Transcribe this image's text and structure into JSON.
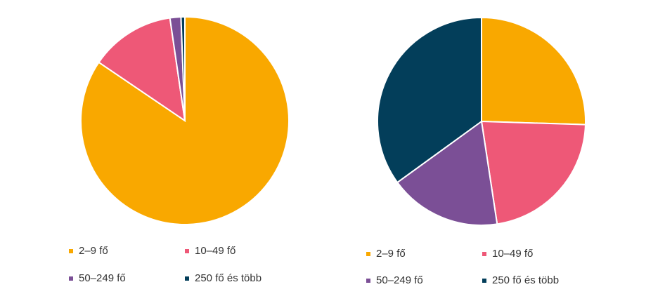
{
  "chart_data": [
    {
      "type": "pie",
      "categories": [
        "2–9 fő",
        "10–49 fő",
        "50–249 fő",
        "250 fő és több"
      ],
      "values": [
        84.5,
        13.2,
        1.7,
        0.6
      ],
      "colors": [
        "#f9a800",
        "#ee5877",
        "#7b4f96",
        "#033e5a"
      ]
    },
    {
      "type": "pie",
      "categories": [
        "2–9 fő",
        "10–49 fő",
        "50–249 fő",
        "250 fő és több"
      ],
      "values": [
        25.5,
        22.1,
        17.4,
        35.0
      ],
      "colors": [
        "#f9a800",
        "#ee5877",
        "#7b4f96",
        "#033e5a"
      ]
    }
  ]
}
